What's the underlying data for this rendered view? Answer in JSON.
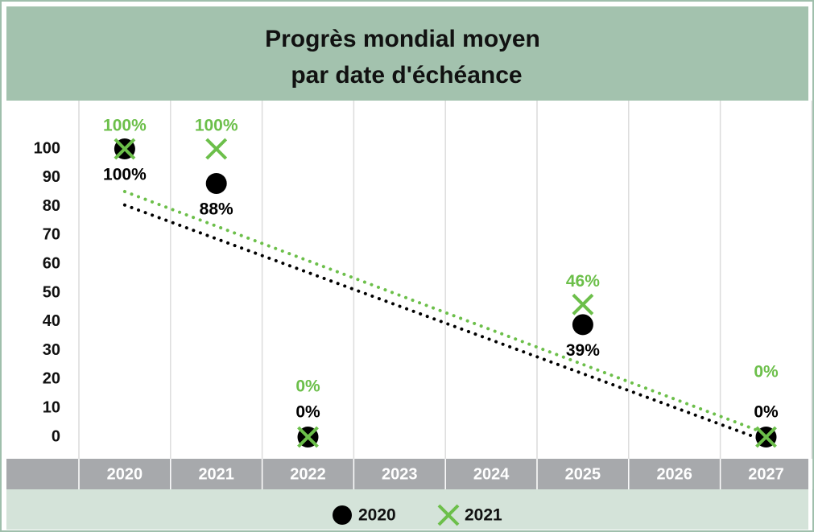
{
  "chart_data": {
    "type": "scatter",
    "title": [
      "Progrès mondial moyen",
      "par date d'échéance"
    ],
    "categories": [
      "2020",
      "2021",
      "2022",
      "2023",
      "2024",
      "2025",
      "2026",
      "2027"
    ],
    "series": [
      {
        "name": "2020",
        "color": "#000000",
        "marker": "circle",
        "values": [
          100,
          88,
          0,
          null,
          null,
          39,
          null,
          0
        ],
        "value_labels": [
          "100%",
          "88%",
          "0%",
          null,
          null,
          "39%",
          null,
          "0%"
        ]
      },
      {
        "name": "2021",
        "color": "#6cbf4a",
        "marker": "x",
        "values": [
          100,
          100,
          0,
          null,
          null,
          46,
          null,
          0
        ],
        "value_labels": [
          "100%",
          "100%",
          "0%",
          null,
          null,
          "46%",
          null,
          "0%"
        ]
      }
    ],
    "ylim": [
      0,
      100
    ],
    "yticks": [
      0,
      10,
      20,
      30,
      40,
      50,
      60,
      70,
      80,
      90,
      100
    ],
    "trendline": true,
    "grid": true,
    "legend": "bottom"
  }
}
